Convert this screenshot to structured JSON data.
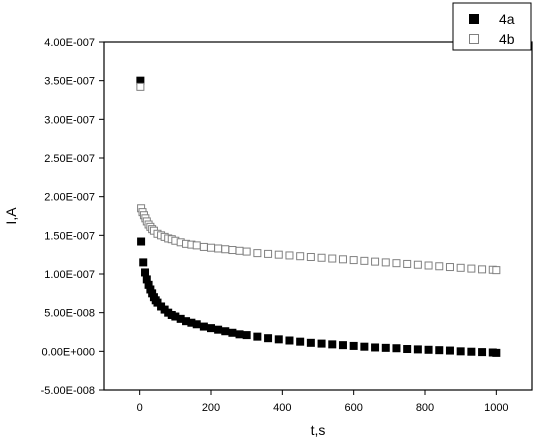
{
  "chart_data": {
    "type": "scatter",
    "xlabel": "t,s",
    "ylabel": "I,A",
    "xlim": [
      -100,
      1100
    ],
    "ylim": [
      -5e-08,
      4e-07
    ],
    "x_ticks": [
      0,
      200,
      400,
      600,
      800,
      1000
    ],
    "x_tick_labels": [
      "0",
      "200",
      "400",
      "600",
      "800",
      "1000"
    ],
    "y_ticks": [
      -5e-08,
      0,
      5e-08,
      1e-07,
      1.5e-07,
      2e-07,
      2.5e-07,
      3e-07,
      3.5e-07,
      4e-07
    ],
    "y_tick_labels": [
      "-5.00E-008",
      "0.00E+000",
      "5.00E-008",
      "1.00E-007",
      "1.50E-007",
      "2.00E-007",
      "2.50E-007",
      "3.00E-007",
      "3.50E-007",
      "4.00E-007"
    ],
    "legend_position": "top-right",
    "grid": false,
    "series": [
      {
        "name": "4a",
        "marker": "filled-square",
        "color": "#000000",
        "x": [
          2,
          4,
          10,
          15,
          20,
          25,
          30,
          35,
          40,
          45,
          50,
          60,
          70,
          80,
          90,
          100,
          115,
          130,
          145,
          160,
          180,
          200,
          220,
          240,
          260,
          280,
          300,
          330,
          360,
          390,
          420,
          450,
          480,
          510,
          540,
          570,
          600,
          630,
          660,
          690,
          720,
          750,
          780,
          810,
          840,
          870,
          900,
          930,
          960,
          990,
          1000
        ],
        "y": [
          3.5e-07,
          1.42e-07,
          1.15e-07,
          1.02e-07,
          9.3e-08,
          8.6e-08,
          8e-08,
          7.5e-08,
          7e-08,
          6.6e-08,
          6.3e-08,
          5.8e-08,
          5.4e-08,
          5e-08,
          4.7e-08,
          4.5e-08,
          4.2e-08,
          3.9e-08,
          3.7e-08,
          3.5e-08,
          3.2e-08,
          3e-08,
          2.8e-08,
          2.6e-08,
          2.4e-08,
          2.2e-08,
          2.1e-08,
          1.9e-08,
          1.7e-08,
          1.55e-08,
          1.4e-08,
          1.25e-08,
          1.1e-08,
          1e-08,
          9e-09,
          8e-09,
          7e-09,
          6e-09,
          5e-09,
          4.5e-09,
          4e-09,
          3e-09,
          2.5e-09,
          2e-09,
          1.5e-09,
          1e-09,
          0,
          -5e-10,
          -1e-09,
          -1.5e-09,
          -2e-09
        ]
      },
      {
        "name": "4b",
        "marker": "open-square",
        "color": "#808080",
        "x": [
          2,
          4,
          8,
          12,
          16,
          20,
          25,
          30,
          35,
          40,
          50,
          60,
          70,
          80,
          90,
          100,
          115,
          130,
          145,
          160,
          180,
          200,
          220,
          240,
          260,
          280,
          300,
          330,
          360,
          390,
          420,
          450,
          480,
          510,
          540,
          570,
          600,
          630,
          660,
          690,
          720,
          750,
          780,
          810,
          840,
          870,
          900,
          930,
          960,
          990,
          1000
        ],
        "y": [
          3.42e-07,
          1.85e-07,
          1.8e-07,
          1.76e-07,
          1.72e-07,
          1.68e-07,
          1.64e-07,
          1.61e-07,
          1.58e-07,
          1.56e-07,
          1.52e-07,
          1.5e-07,
          1.48e-07,
          1.46e-07,
          1.45e-07,
          1.43e-07,
          1.41e-07,
          1.39e-07,
          1.38e-07,
          1.37e-07,
          1.35e-07,
          1.34e-07,
          1.33e-07,
          1.32e-07,
          1.31e-07,
          1.3e-07,
          1.29e-07,
          1.27e-07,
          1.26e-07,
          1.25e-07,
          1.24e-07,
          1.23e-07,
          1.22e-07,
          1.21e-07,
          1.2e-07,
          1.19e-07,
          1.18e-07,
          1.17e-07,
          1.16e-07,
          1.15e-07,
          1.14e-07,
          1.13e-07,
          1.12e-07,
          1.11e-07,
          1.1e-07,
          1.09e-07,
          1.08e-07,
          1.07e-07,
          1.06e-07,
          1.055e-07,
          1.05e-07
        ]
      }
    ]
  }
}
